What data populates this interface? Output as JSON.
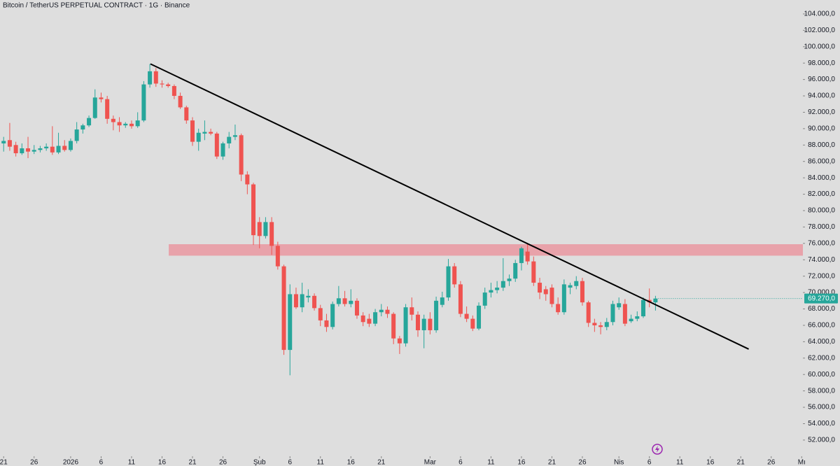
{
  "chart_data": {
    "type": "candlestick",
    "title": "Bitcoin / TetherUS PERPETUAL CONTRACT · 1G · Binance",
    "up_color": "#26a69a",
    "down_color": "#ef5350",
    "open": [
      88200,
      88600,
      88000,
      87000,
      87600,
      87200,
      87400,
      87600,
      87800,
      87100,
      87900,
      87400,
      88500,
      89900,
      90400,
      91300,
      93800,
      93600,
      91200,
      90800,
      90400,
      90600,
      90300,
      91000,
      95400,
      97000,
      95500,
      95400,
      95200,
      94000,
      92600,
      91000,
      88400,
      89400,
      89600,
      89400,
      86600,
      88200,
      89000,
      89200,
      84400,
      83200,
      78600,
      76900,
      78600,
      75700,
      73200,
      63000,
      69800,
      68200,
      69400,
      69600,
      68100,
      66600,
      65800,
      68600,
      69300,
      68600,
      69000,
      67200,
      66800,
      66200,
      67600,
      67900,
      67400,
      64400,
      63800,
      68200,
      67300,
      65400,
      66800,
      65400,
      68500,
      69400,
      73200,
      71000,
      67400,
      66800,
      65600,
      68400,
      70000,
      70300,
      70600,
      71400,
      71700,
      73600,
      75000,
      73800,
      71200,
      70400,
      70600,
      68600,
      67600,
      70600,
      70800,
      71400,
      68800,
      66300,
      66000,
      65800,
      66400,
      68200,
      68600,
      66500,
      66800,
      67100,
      69100,
      68800
    ],
    "high": [
      89000,
      90700,
      88400,
      88200,
      89000,
      88000,
      87900,
      88200,
      90300,
      89500,
      88600,
      88800,
      90800,
      90600,
      91600,
      94800,
      94400,
      94000,
      91600,
      91400,
      90800,
      91000,
      92000,
      95800,
      97900,
      97400,
      95900,
      95600,
      95400,
      94400,
      92800,
      91400,
      90000,
      91000,
      90000,
      89600,
      88400,
      89600,
      90500,
      89400,
      84800,
      83400,
      79200,
      79200,
      79200,
      76200,
      73400,
      71000,
      70600,
      71200,
      70400,
      69900,
      68500,
      67400,
      68900,
      70800,
      70200,
      70400,
      69300,
      67600,
      67400,
      68000,
      68600,
      68300,
      67600,
      64700,
      68600,
      69400,
      67700,
      67300,
      67600,
      69500,
      70100,
      74100,
      73600,
      71400,
      68300,
      67200,
      68800,
      70600,
      71200,
      71400,
      74200,
      72200,
      74000,
      75600,
      76000,
      74400,
      71800,
      70800,
      71000,
      69400,
      71600,
      71200,
      72000,
      71800,
      69000,
      66800,
      66400,
      66900,
      69000,
      69400,
      69200,
      67300,
      67700,
      69400,
      70500,
      69600
    ],
    "low": [
      87200,
      87300,
      86600,
      86800,
      86400,
      86900,
      87100,
      87300,
      86800,
      86900,
      87200,
      87200,
      88200,
      89400,
      90200,
      91200,
      93200,
      90600,
      89800,
      89600,
      90100,
      90000,
      90100,
      90800,
      95000,
      95100,
      95000,
      95000,
      93600,
      92400,
      90600,
      87900,
      87300,
      88600,
      89200,
      86300,
      86200,
      87600,
      88600,
      83600,
      82000,
      75800,
      75400,
      76600,
      74600,
      72800,
      62400,
      59900,
      68000,
      67600,
      68800,
      67800,
      65900,
      65200,
      65500,
      68300,
      68300,
      68200,
      66800,
      65900,
      65800,
      65900,
      67100,
      66900,
      63700,
      62500,
      63400,
      66600,
      64600,
      63200,
      64900,
      65100,
      68200,
      69000,
      70600,
      67000,
      66400,
      65300,
      65400,
      68000,
      69400,
      69900,
      70200,
      70800,
      71300,
      72700,
      73400,
      70800,
      69200,
      69000,
      68200,
      67300,
      67300,
      69800,
      70400,
      68400,
      65800,
      65200,
      64900,
      65400,
      66000,
      67900,
      65900,
      66300,
      66500,
      66900,
      68200,
      67800
    ],
    "close": [
      88500,
      87800,
      87000,
      87600,
      87200,
      87400,
      87600,
      87800,
      87100,
      87900,
      87400,
      88500,
      89900,
      90400,
      91300,
      93800,
      93600,
      91200,
      90800,
      90400,
      90600,
      90300,
      91000,
      95400,
      97000,
      95500,
      95400,
      95200,
      94000,
      92600,
      91000,
      88400,
      89500,
      89600,
      89400,
      86600,
      88200,
      89000,
      89200,
      84400,
      83200,
      77000,
      76900,
      78600,
      75700,
      73200,
      63000,
      69800,
      68200,
      69800,
      69600,
      68100,
      66600,
      65800,
      68600,
      69300,
      68600,
      69000,
      67200,
      66400,
      66200,
      67600,
      67900,
      67400,
      64400,
      63800,
      68200,
      67300,
      65400,
      66800,
      65400,
      69000,
      69400,
      73200,
      71000,
      67400,
      66800,
      65600,
      68400,
      70000,
      70300,
      70600,
      71400,
      71700,
      73600,
      75400,
      73800,
      71200,
      70000,
      69800,
      68600,
      67600,
      71000,
      70900,
      71400,
      68800,
      66300,
      66000,
      65800,
      66400,
      68600,
      68700,
      66200,
      66800,
      67100,
      69100,
      68800,
      69270
    ],
    "last_value_label": "69.270,0",
    "ylim": [
      50200,
      105700
    ],
    "yticks": [
      {
        "value": 52000,
        "label": "52.000,0"
      },
      {
        "value": 54000,
        "label": "54.000,0"
      },
      {
        "value": 56000,
        "label": "56.000,0"
      },
      {
        "value": 58000,
        "label": "58.000,0"
      },
      {
        "value": 60000,
        "label": "60.000,0"
      },
      {
        "value": 62000,
        "label": "62.000,0"
      },
      {
        "value": 64000,
        "label": "64.000,0"
      },
      {
        "value": 66000,
        "label": "66.000,0"
      },
      {
        "value": 68000,
        "label": "68.000,0"
      },
      {
        "value": 70000,
        "label": "70.000,0"
      },
      {
        "value": 72000,
        "label": "72.000,0"
      },
      {
        "value": 74000,
        "label": "74.000,0"
      },
      {
        "value": 76000,
        "label": "76.000,0"
      },
      {
        "value": 78000,
        "label": "78.000,0"
      },
      {
        "value": 80000,
        "label": "80.000,0"
      },
      {
        "value": 82000,
        "label": "82.000,0"
      },
      {
        "value": 84000,
        "label": "84.000,0"
      },
      {
        "value": 86000,
        "label": "86.000,0"
      },
      {
        "value": 88000,
        "label": "88.000,0"
      },
      {
        "value": 90000,
        "label": "90.000,0"
      },
      {
        "value": 92000,
        "label": "92.000,0"
      },
      {
        "value": 94000,
        "label": "94.000,0"
      },
      {
        "value": 96000,
        "label": "96.000,0"
      },
      {
        "value": 98000,
        "label": "98.000,0"
      },
      {
        "value": 100000,
        "label": "100.000,0"
      },
      {
        "value": 102000,
        "label": "102.000,0"
      },
      {
        "value": 104000,
        "label": "104.000,0"
      }
    ],
    "xlim": [
      -0.6,
      131.2
    ],
    "xticks": [
      {
        "value": 0,
        "label": "21"
      },
      {
        "value": 5,
        "label": "26"
      },
      {
        "value": 11,
        "label": "2026"
      },
      {
        "value": 16,
        "label": "6"
      },
      {
        "value": 21,
        "label": "11"
      },
      {
        "value": 26,
        "label": "16"
      },
      {
        "value": 31,
        "label": "21"
      },
      {
        "value": 36,
        "label": "26"
      },
      {
        "value": 42,
        "label": "Şub"
      },
      {
        "value": 47,
        "label": "6"
      },
      {
        "value": 52,
        "label": "11"
      },
      {
        "value": 57,
        "label": "16"
      },
      {
        "value": 62,
        "label": "21"
      },
      {
        "value": 70,
        "label": "Mar"
      },
      {
        "value": 75,
        "label": "6"
      },
      {
        "value": 80,
        "label": "11"
      },
      {
        "value": 85,
        "label": "16"
      },
      {
        "value": 90,
        "label": "21"
      },
      {
        "value": 95,
        "label": "26"
      },
      {
        "value": 101,
        "label": "Nis"
      },
      {
        "value": 106,
        "label": "6"
      },
      {
        "value": 111,
        "label": "11"
      },
      {
        "value": 116,
        "label": "16"
      },
      {
        "value": 121,
        "label": "21"
      },
      {
        "value": 126,
        "label": "26"
      },
      {
        "value": 131,
        "label": "Mı"
      }
    ],
    "annotations": [
      {
        "type": "zone",
        "x": [
          27.1,
          131.2
        ],
        "y": [
          74500,
          75900
        ],
        "color": "#e8a2aa"
      },
      {
        "type": "trendline",
        "x": [
          24.1,
          122.3
        ],
        "y": [
          97900,
          63100
        ],
        "color": "#000000"
      }
    ]
  }
}
